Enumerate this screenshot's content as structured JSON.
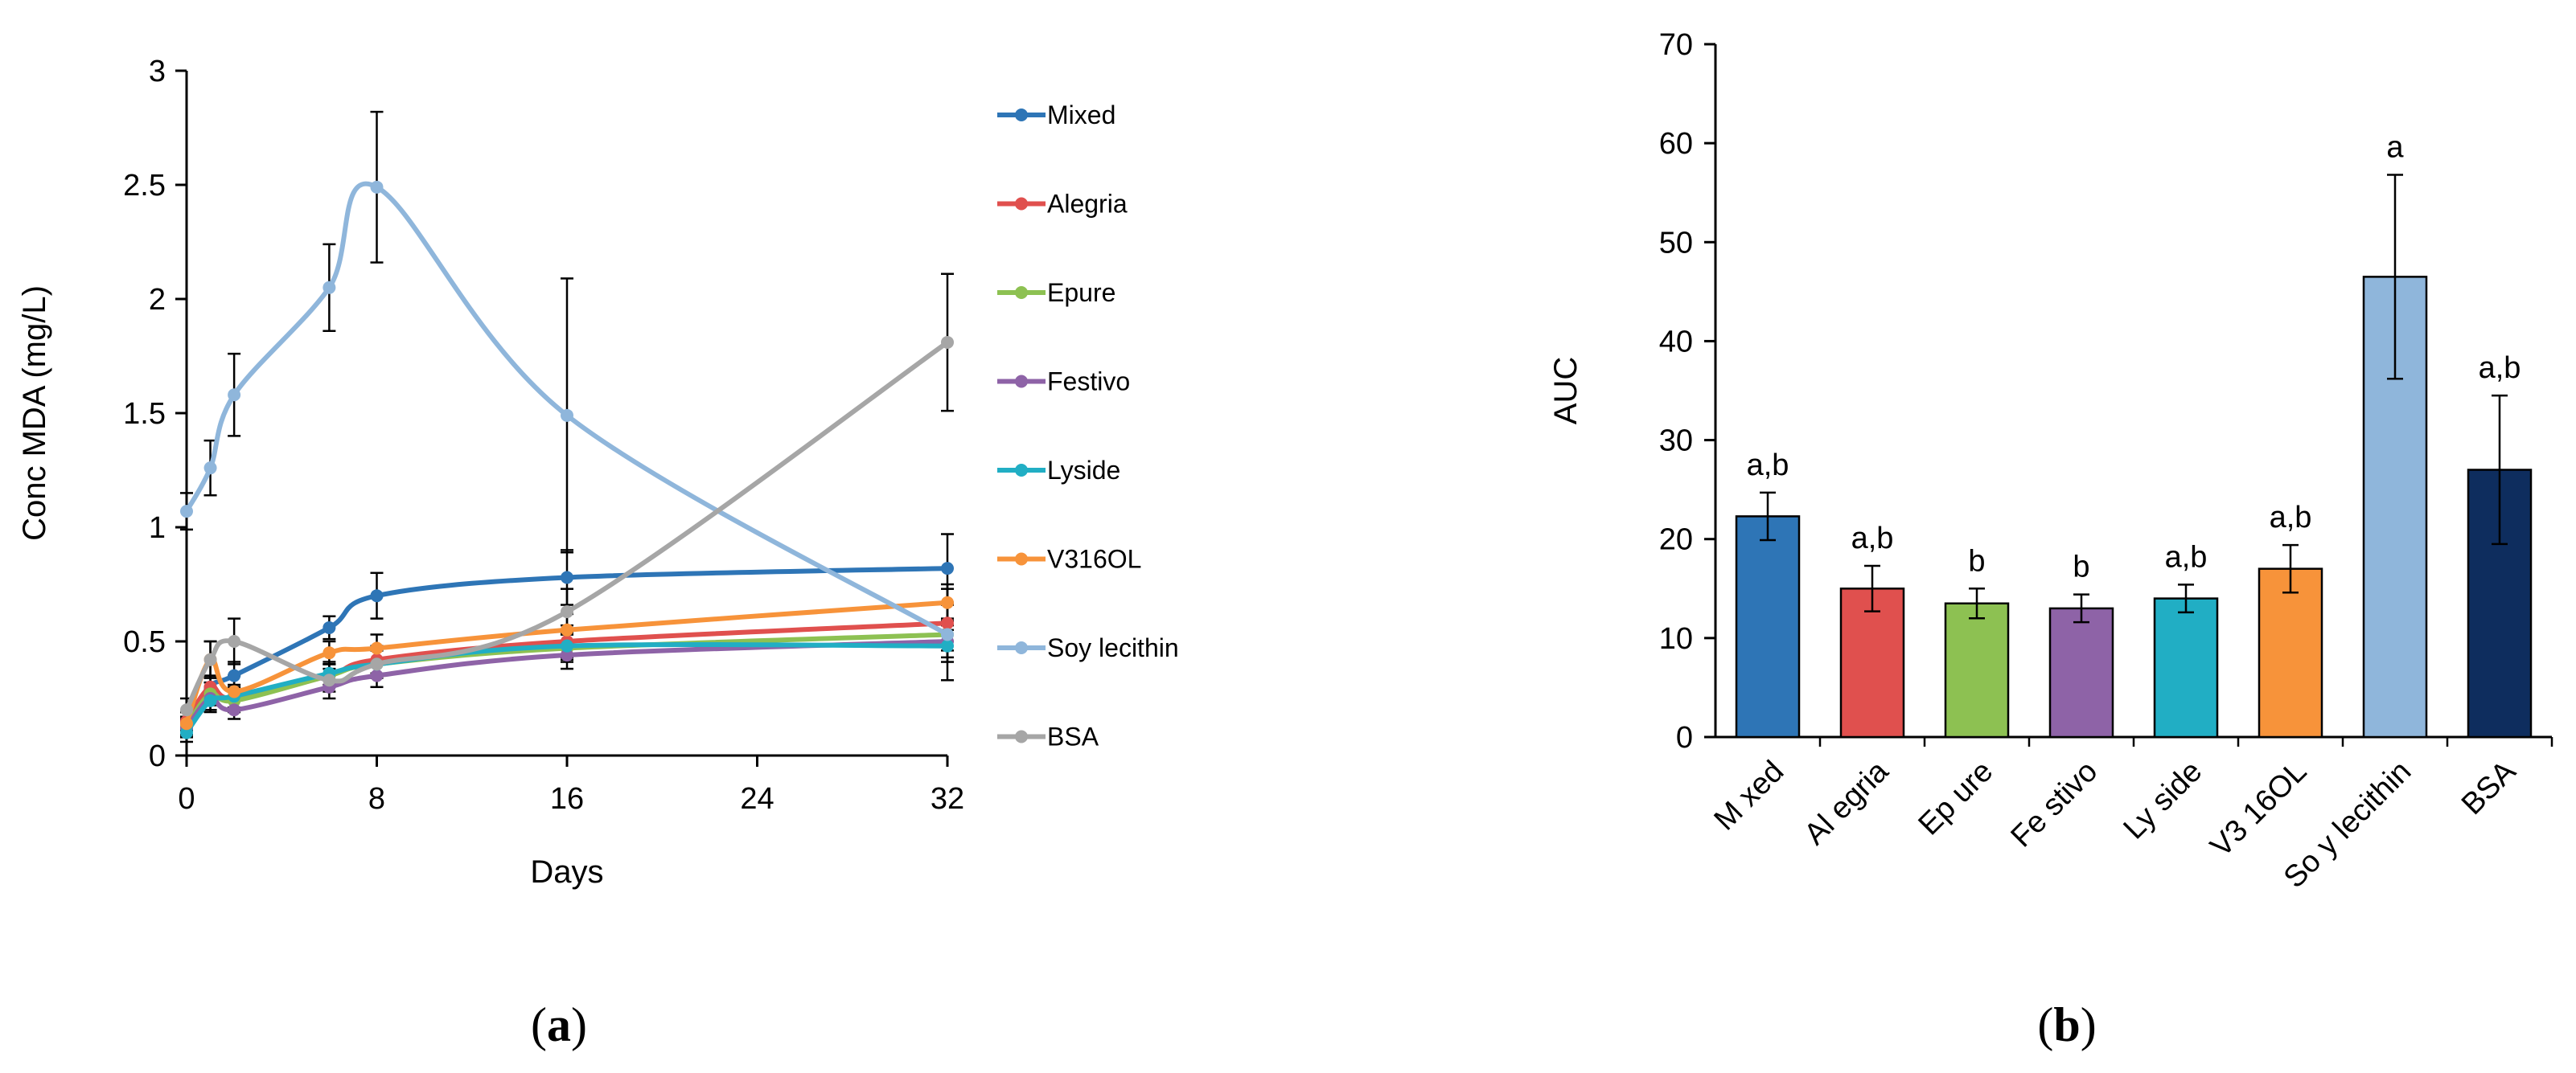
{
  "chart_data": [
    {
      "type": "line",
      "panel_label": "(a)",
      "panel_label_parts": [
        "(",
        "a",
        ")"
      ],
      "xlabel": "Days",
      "ylabel": "Conc MDA (mg/L)",
      "xlim": [
        0,
        32
      ],
      "ylim": [
        0,
        3
      ],
      "xticks": [
        0,
        8,
        16,
        24,
        32
      ],
      "yticks": [
        0,
        0.5,
        1,
        1.5,
        2,
        2.5,
        3
      ],
      "ytick_labels": [
        "0",
        "0.5",
        "1",
        "1.5",
        "2",
        "2.5",
        "3"
      ],
      "legend_position": "right",
      "x": [
        0,
        1,
        2,
        6,
        8,
        16,
        32
      ],
      "series": [
        {
          "name": "Mixed",
          "color": "#2E75B6",
          "values": [
            0.12,
            0.3,
            0.35,
            0.56,
            0.7,
            0.78,
            0.82
          ],
          "errors": [
            0.04,
            0.05,
            0.06,
            0.05,
            0.1,
            0.12,
            0.15
          ]
        },
        {
          "name": "Alegria",
          "color": "#E0504E",
          "values": [
            0.15,
            0.3,
            0.25,
            0.35,
            0.42,
            0.5,
            0.58
          ],
          "errors": [
            0.04,
            0.05,
            0.05,
            0.05,
            0.06,
            0.07,
            0.08
          ]
        },
        {
          "name": "Epure",
          "color": "#8DC152",
          "values": [
            0.13,
            0.27,
            0.24,
            0.35,
            0.4,
            0.47,
            0.53
          ],
          "errors": [
            0.04,
            0.05,
            0.05,
            0.05,
            0.06,
            0.06,
            0.07
          ]
        },
        {
          "name": "Festivo",
          "color": "#8E63A7",
          "values": [
            0.12,
            0.25,
            0.2,
            0.3,
            0.35,
            0.44,
            0.5
          ],
          "errors": [
            0.04,
            0.05,
            0.04,
            0.05,
            0.05,
            0.06,
            0.07
          ]
        },
        {
          "name": "Lyside",
          "color": "#21AEC4",
          "values": [
            0.1,
            0.24,
            0.26,
            0.36,
            0.4,
            0.48,
            0.48
          ],
          "errors": [
            0.04,
            0.05,
            0.05,
            0.05,
            0.06,
            0.06,
            0.07
          ]
        },
        {
          "name": "V316OL",
          "color": "#F7933A",
          "values": [
            0.14,
            0.42,
            0.28,
            0.45,
            0.47,
            0.55,
            0.67
          ],
          "errors": [
            0.05,
            0.08,
            0.07,
            0.05,
            0.06,
            0.07,
            0.08
          ]
        },
        {
          "name": "Soy lecithin",
          "color": "#8FB6DB",
          "values": [
            1.07,
            1.26,
            1.58,
            2.05,
            2.49,
            1.49,
            0.53
          ],
          "errors": [
            0.08,
            0.12,
            0.18,
            0.19,
            0.33,
            0.6,
            0.2
          ]
        },
        {
          "name": "BSA",
          "color": "#A6A6A6",
          "values": [
            0.2,
            0.42,
            0.5,
            0.33,
            0.4,
            0.63,
            1.81
          ],
          "errors": [
            0.05,
            0.08,
            0.1,
            0.05,
            0.06,
            0.1,
            0.3
          ]
        }
      ]
    },
    {
      "type": "bar",
      "panel_label": "(b)",
      "panel_label_parts": [
        "(",
        "b",
        ")"
      ],
      "xlabel": "",
      "ylabel": "AUC",
      "ylim": [
        0,
        70
      ],
      "yticks": [
        0,
        10,
        20,
        30,
        40,
        50,
        60,
        70
      ],
      "categories": [
        "Mixed",
        "Alegria",
        "Epure",
        "Festivo",
        "Lyside",
        "V316OL",
        "Soy lecithin",
        "BSA"
      ],
      "category_labels": [
        "M xed",
        "Al egria",
        "Ep ure",
        "Fe stivo",
        "Ly side",
        "V3 16OL",
        "So y lecithin",
        "BSA"
      ],
      "values": [
        22.3,
        15.0,
        13.5,
        13.0,
        14.0,
        17.0,
        46.5,
        27.0
      ],
      "errors": [
        2.4,
        2.3,
        1.5,
        1.4,
        1.4,
        2.4,
        10.3,
        7.5
      ],
      "significance": [
        "a,b",
        "a,b",
        "b",
        "b",
        "a,b",
        "a,b",
        "a",
        "a,b"
      ],
      "colors": [
        "#2E75B6",
        "#E0504E",
        "#8DC152",
        "#8E63A7",
        "#21AEC4",
        "#F7933A",
        "#8FB6DB",
        "#0E2D5E"
      ]
    }
  ]
}
